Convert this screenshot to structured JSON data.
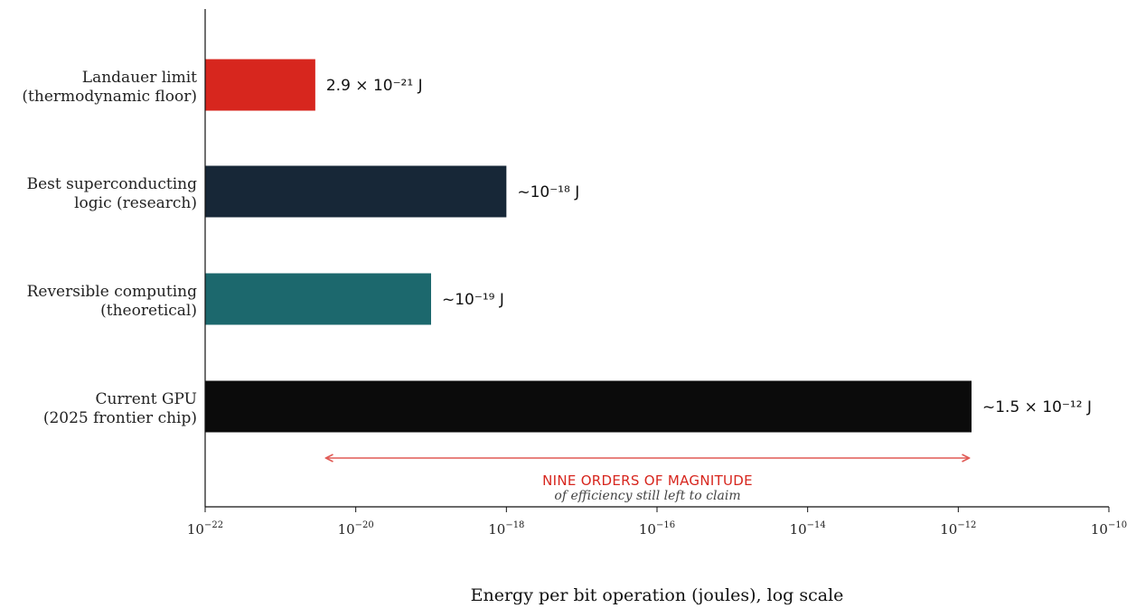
{
  "chart_data": {
    "type": "bar",
    "orientation": "horizontal",
    "x_scale": "log",
    "xlim": [
      1e-22,
      1e-10
    ],
    "xlabel": "Energy per bit operation (joules), log scale",
    "ylabel": "",
    "title": "",
    "grid": false,
    "categories": [
      "Landauer limit\n(thermodynamic floor)",
      "Best superconducting\nlogic (research)",
      "Reversible computing\n(theoretical)",
      "Current GPU\n(2025 frontier chip)"
    ],
    "values": [
      2.9e-21,
      1e-18,
      1e-19,
      1.5e-12
    ],
    "colors": [
      "#d7261e",
      "#172737",
      "#1c686d",
      "#0b0b0b"
    ],
    "data_labels": [
      "2.9 × 10⁻²¹ J",
      "~10⁻¹⁸ J",
      "~10⁻¹⁹ J",
      "~1.5 × 10⁻¹² J"
    ],
    "x_ticks": [
      {
        "value": 1e-22,
        "base": "10",
        "exp": "−22"
      },
      {
        "value": 1e-20,
        "base": "10",
        "exp": "−20"
      },
      {
        "value": 1e-18,
        "base": "10",
        "exp": "−18"
      },
      {
        "value": 1e-16,
        "base": "10",
        "exp": "−16"
      },
      {
        "value": 1e-14,
        "base": "10",
        "exp": "−14"
      },
      {
        "value": 1e-12,
        "base": "10",
        "exp": "−12"
      },
      {
        "value": 1e-10,
        "base": "10",
        "exp": "−10"
      }
    ],
    "annotation": {
      "arrow_from": 4e-21,
      "arrow_to": 1.4e-12,
      "text": "NINE ORDERS OF MAGNITUDE",
      "subtext": "of efficiency still left to claim",
      "color": "#d7261e"
    }
  }
}
